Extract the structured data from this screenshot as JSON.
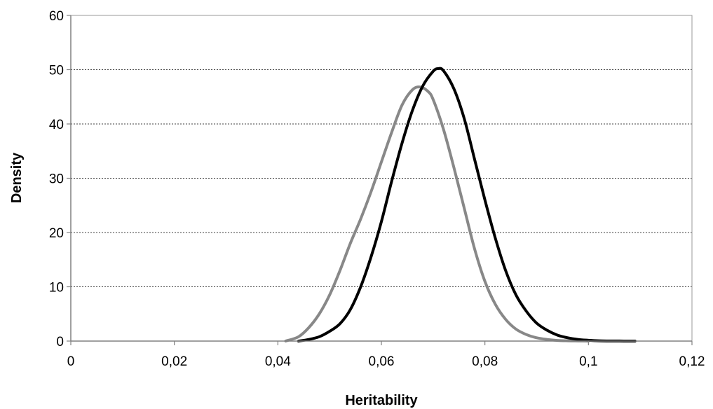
{
  "chart_data": {
    "type": "line",
    "title": "",
    "xlabel": "Heritability",
    "ylabel": "Density",
    "xlim": [
      0,
      0.12
    ],
    "ylim": [
      0,
      60
    ],
    "x_ticks": [
      0,
      0.02,
      0.04,
      0.06,
      0.08,
      0.1,
      0.12
    ],
    "x_tick_labels": [
      "0",
      "0,02",
      "0,04",
      "0,06",
      "0,08",
      "0,1",
      "0,12"
    ],
    "y_ticks": [
      0,
      10,
      20,
      30,
      40,
      50,
      60
    ],
    "y_tick_labels": [
      "0",
      "10",
      "20",
      "30",
      "40",
      "50",
      "60"
    ],
    "grid": "horizontal dashed",
    "legend": "none",
    "series": [
      {
        "color": "#888888",
        "x": [
          0.0415,
          0.044,
          0.046,
          0.048,
          0.05,
          0.052,
          0.054,
          0.056,
          0.058,
          0.06,
          0.062,
          0.064,
          0.066,
          0.0675,
          0.069,
          0.07,
          0.072,
          0.074,
          0.076,
          0.078,
          0.08,
          0.082,
          0.084,
          0.086,
          0.088,
          0.09,
          0.092,
          0.094,
          0.096,
          0.098,
          0.1
        ],
        "y": [
          0,
          0.8,
          2.5,
          5.0,
          8.5,
          13,
          18,
          22.5,
          27.5,
          33,
          38.5,
          43.5,
          46.3,
          46.8,
          46.0,
          44.5,
          39,
          32,
          24.5,
          17,
          11,
          6.8,
          4.0,
          2.2,
          1.2,
          0.6,
          0.3,
          0.12,
          0.05,
          0.02,
          0
        ]
      },
      {
        "color": "#000000",
        "x": [
          0.044,
          0.046,
          0.048,
          0.05,
          0.052,
          0.054,
          0.056,
          0.058,
          0.06,
          0.062,
          0.064,
          0.066,
          0.068,
          0.07,
          0.071,
          0.072,
          0.074,
          0.076,
          0.078,
          0.08,
          0.082,
          0.084,
          0.086,
          0.088,
          0.09,
          0.092,
          0.094,
          0.096,
          0.098,
          0.1,
          0.102,
          0.104,
          0.106,
          0.109
        ],
        "y": [
          0,
          0.3,
          0.8,
          1.8,
          3.2,
          5.8,
          10,
          15.5,
          22,
          29.5,
          36.5,
          42.5,
          47,
          49.7,
          50.2,
          49.8,
          46.5,
          41,
          33.5,
          26,
          19,
          13,
          8.5,
          5.5,
          3.3,
          2.0,
          1.1,
          0.6,
          0.3,
          0.15,
          0.05,
          0.02,
          0.01,
          0
        ]
      }
    ]
  }
}
